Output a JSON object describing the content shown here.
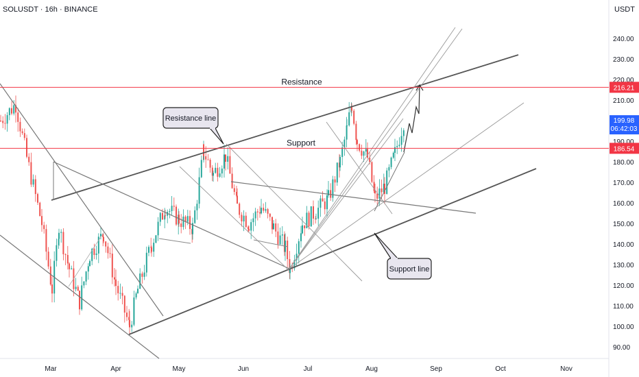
{
  "header": {
    "symbol": "SOLUSDT · 16h · BINANCE",
    "currency": "USDT"
  },
  "chart_data": {
    "type": "candlestick",
    "x_axis": {
      "labels": [
        "Mar",
        "Apr",
        "May",
        "Jun",
        "Jul",
        "Aug",
        "Sep",
        "Oct",
        "Nov"
      ]
    },
    "y_axis": {
      "ticks": [
        240,
        230,
        220,
        210,
        200,
        190,
        180,
        170,
        160,
        150,
        140,
        130,
        120,
        110,
        100,
        90
      ],
      "range": [
        85,
        248
      ],
      "tick_labels": [
        "240.00",
        "230.00",
        "220.00",
        "210.00",
        "200.00",
        "190.00",
        "180.00",
        "170.00",
        "160.00",
        "150.00",
        "140.00",
        "130.00",
        "120.00",
        "110.00",
        "100.00",
        "90.00"
      ]
    },
    "levels": [
      {
        "label": "Resistance",
        "value": 216.21,
        "value_label": "216.21",
        "color": "#f23645"
      },
      {
        "label": "Support",
        "value": 186.54,
        "value_label": "186.54",
        "color": "#f23645"
      }
    ],
    "current_price": {
      "value": 199.98,
      "label": "199.98",
      "countdown": "06:42:03",
      "color": "#2962ff"
    },
    "annotations": [
      {
        "text": "Resistance line"
      },
      {
        "text": "Support line"
      }
    ],
    "colors": {
      "up": "#26a69a",
      "down": "#ef5350",
      "line": "#555555",
      "thin": "#888888"
    }
  }
}
